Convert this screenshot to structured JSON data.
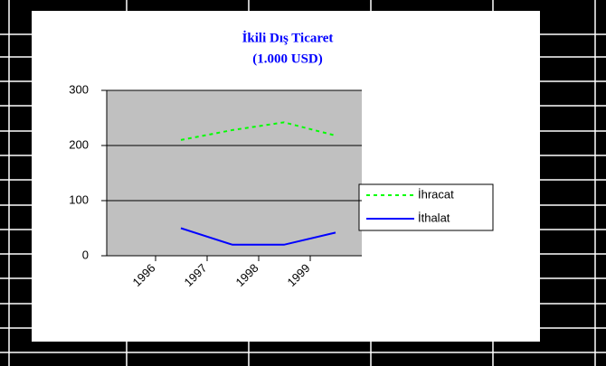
{
  "chart_data": {
    "type": "line",
    "title": "İkili Dış Ticaret",
    "subtitle": "(1.000 USD)",
    "categories": [
      "1996",
      "1997",
      "1998",
      "1999"
    ],
    "series": [
      {
        "name": "İhracat",
        "color": "#00ff00",
        "dashed": true,
        "values": [
          210,
          228,
          242,
          218
        ]
      },
      {
        "name": "İthalat",
        "color": "#0000ff",
        "dashed": false,
        "values": [
          50,
          20,
          20,
          42
        ]
      }
    ],
    "ylim": [
      0,
      300
    ],
    "yticks": [
      0,
      100,
      200,
      300
    ],
    "grid": true,
    "legend": "right"
  }
}
